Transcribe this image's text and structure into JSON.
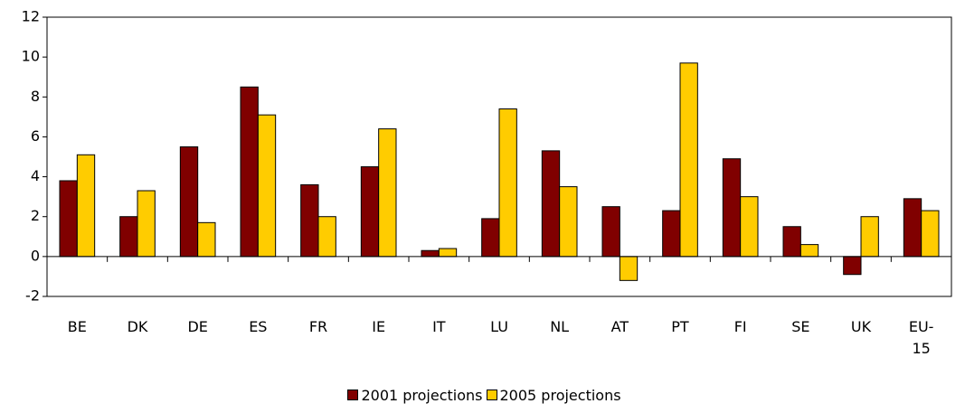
{
  "chart_data": {
    "type": "bar",
    "categories": [
      "BE",
      "DK",
      "DE",
      "ES",
      "FR",
      "IE",
      "IT",
      "LU",
      "NL",
      "AT",
      "PT",
      "FI",
      "SE",
      "UK",
      "EU-15"
    ],
    "series": [
      {
        "name": "2001 projections",
        "color": "#800000",
        "values": [
          3.8,
          2.0,
          5.5,
          8.5,
          3.6,
          4.5,
          0.3,
          1.9,
          5.3,
          2.5,
          2.3,
          4.9,
          1.5,
          -0.9,
          2.9
        ]
      },
      {
        "name": "2005 projections",
        "color": "#ffcc00",
        "values": [
          5.1,
          3.3,
          1.7,
          7.1,
          2.0,
          6.4,
          0.4,
          7.4,
          3.5,
          -1.2,
          9.7,
          3.0,
          0.6,
          2.0,
          2.3
        ]
      }
    ],
    "ylim": [
      -2,
      12
    ],
    "yticks": [
      -2,
      0,
      2,
      4,
      6,
      8,
      10,
      12
    ],
    "legend": "bottom"
  }
}
